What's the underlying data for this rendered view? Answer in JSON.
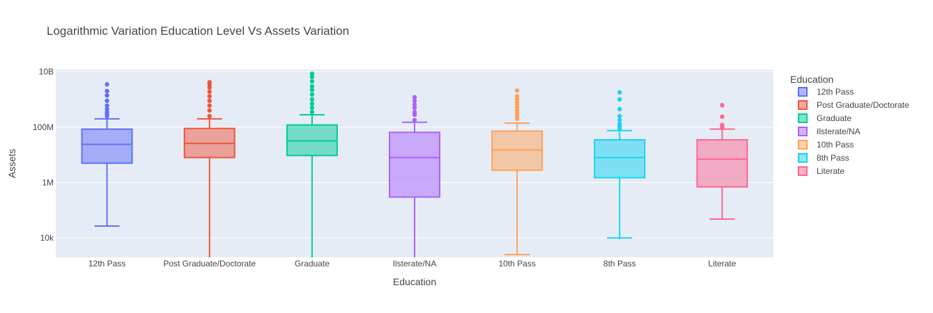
{
  "chart_data": {
    "type": "box",
    "title": "Logarithmic Variation Education Level Vs Assets Variation",
    "xlabel": "Education",
    "ylabel": "Assets",
    "yscale": "log",
    "ylim": [
      2000,
      12000000000
    ],
    "yticks": [
      {
        "value": 10000,
        "label": "10k"
      },
      {
        "value": 1000000,
        "label": "1M"
      },
      {
        "value": 100000000,
        "label": "100M"
      },
      {
        "value": 10000000000,
        "label": "10B"
      }
    ],
    "legend_title": "Education",
    "legend_position": "right",
    "grid": true,
    "series": [
      {
        "name": "12th Pass",
        "color": "#636efa",
        "lowerfence": 27000,
        "q1": 5000000,
        "median": 24000000,
        "q3": 85000000,
        "upperfence": 200000000,
        "outliers": [
          250000000,
          300000000,
          350000000,
          450000000,
          600000000,
          900000000,
          1400000000,
          2000000000,
          3500000000
        ]
      },
      {
        "name": "Post Graduate/Doctorate",
        "color": "#ef553b",
        "lowerfence": 2000,
        "q1": 8000000,
        "median": 26000000,
        "q3": 90000000,
        "upperfence": 200000000,
        "outliers": [
          250000000,
          400000000,
          600000000,
          900000000,
          1300000000,
          1900000000,
          2700000000,
          3500000000,
          4200000000
        ]
      },
      {
        "name": "Graduate",
        "color": "#00cc96",
        "lowerfence": 2000,
        "q1": 9500000,
        "median": 32000000,
        "q3": 120000000,
        "upperfence": 280000000,
        "outliers": [
          350000000,
          500000000,
          700000000,
          1000000000,
          1500000000,
          2200000000,
          3000000000,
          4500000000,
          6500000000,
          8500000000
        ]
      },
      {
        "name": "Ilsterate/NA",
        "color": "#ab63fa",
        "lowerfence": 2000,
        "q1": 300000,
        "median": 8000000,
        "q3": 65000000,
        "upperfence": 150000000,
        "outliers": [
          180000000,
          280000000,
          350000000,
          500000000,
          650000000,
          900000000,
          1200000000
        ]
      },
      {
        "name": "10th Pass",
        "color": "#ffa15a",
        "lowerfence": 2500,
        "q1": 2800000,
        "median": 15000000,
        "q3": 72000000,
        "upperfence": 140000000,
        "outliers": [
          200000000,
          250000000,
          320000000,
          400000000,
          520000000,
          650000000,
          800000000,
          1000000000,
          1300000000,
          2100000000
        ]
      },
      {
        "name": "8th Pass",
        "color": "#19d3f3",
        "lowerfence": 10000,
        "q1": 1500000,
        "median": 8000000,
        "q3": 35000000,
        "upperfence": 75000000,
        "outliers": [
          90000000,
          110000000,
          130000000,
          180000000,
          250000000,
          450000000,
          1000000000,
          1800000000
        ]
      },
      {
        "name": "Literate",
        "color": "#ff6692",
        "lowerfence": 48000,
        "q1": 700000,
        "median": 7000000,
        "q3": 35000000,
        "upperfence": 85000000,
        "outliers": [
          100000000,
          120000000,
          240000000,
          620000000
        ]
      }
    ]
  }
}
